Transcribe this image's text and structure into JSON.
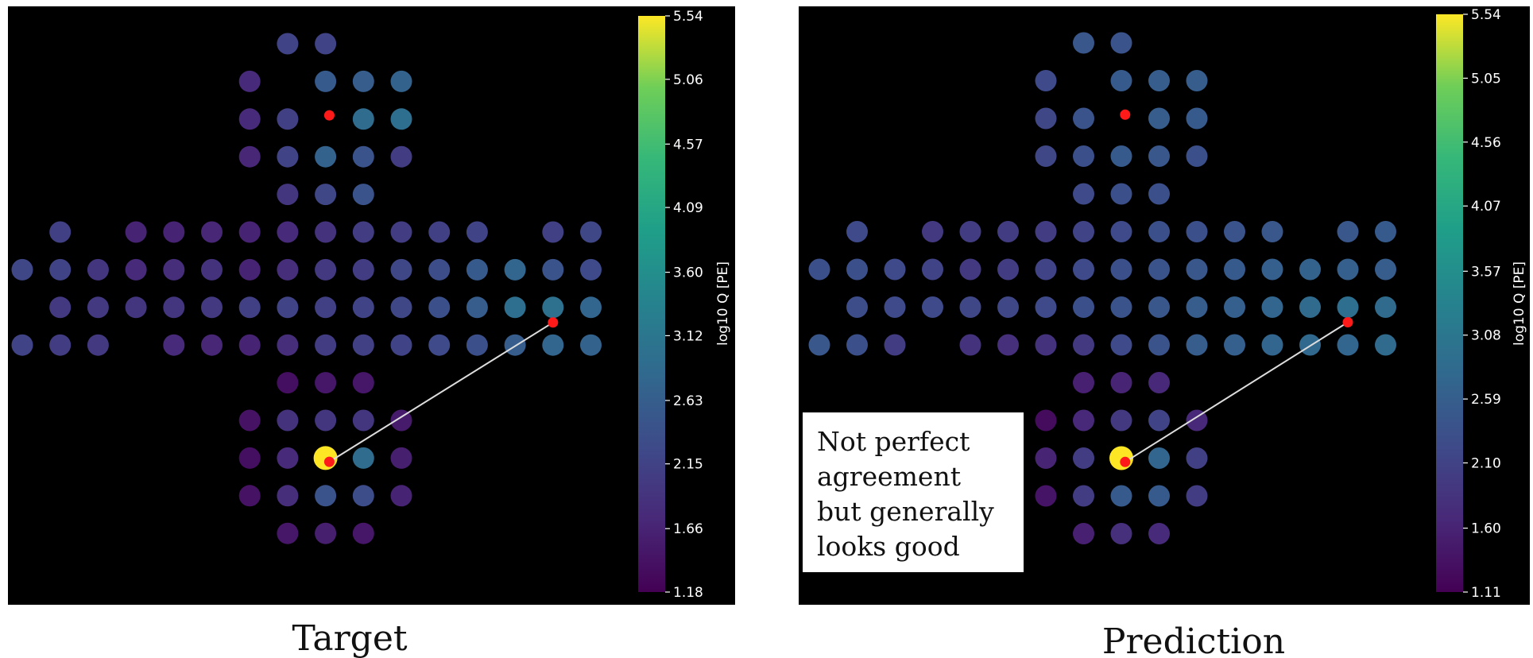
{
  "figure_caption": {
    "left": "Target",
    "right": "Prediction"
  },
  "chart_data": [
    {
      "type": "scatter",
      "title": "Target",
      "colorbar": {
        "label": "log10 Q [PE]",
        "min": 1.18,
        "max": 5.54,
        "ticks": [
          1.18,
          1.66,
          2.15,
          2.63,
          3.12,
          3.6,
          4.09,
          4.57,
          5.06,
          5.54
        ],
        "tick_labels": [
          "1.18",
          "1.66",
          "2.15",
          "2.63",
          "3.12",
          "3.60",
          "4.09",
          "4.57",
          "5.06",
          "5.54"
        ],
        "colormap": "viridis"
      },
      "background": "#000000",
      "grid": false,
      "points": [
        {
          "col": 7,
          "row": 0,
          "value": 2.05
        },
        {
          "col": 8,
          "row": 0,
          "value": 2.05
        },
        {
          "col": 6,
          "row": 1,
          "value": 1.7
        },
        {
          "col": 8,
          "row": 1,
          "value": 2.4
        },
        {
          "col": 9,
          "row": 1,
          "value": 2.45
        },
        {
          "col": 10,
          "row": 1,
          "value": 2.55
        },
        {
          "col": 6,
          "row": 2,
          "value": 1.7
        },
        {
          "col": 7,
          "row": 2,
          "value": 2.0
        },
        {
          "col": 9,
          "row": 2,
          "value": 2.7
        },
        {
          "col": 10,
          "row": 2,
          "value": 2.75
        },
        {
          "col": 6,
          "row": 3,
          "value": 1.65
        },
        {
          "col": 7,
          "row": 3,
          "value": 2.05
        },
        {
          "col": 8,
          "row": 3,
          "value": 2.55
        },
        {
          "col": 9,
          "row": 3,
          "value": 2.3
        },
        {
          "col": 10,
          "row": 3,
          "value": 1.95
        },
        {
          "col": 7,
          "row": 4,
          "value": 1.85
        },
        {
          "col": 8,
          "row": 4,
          "value": 2.1
        },
        {
          "col": 9,
          "row": 4,
          "value": 2.3
        },
        {
          "col": 1,
          "row": 5,
          "value": 2.0
        },
        {
          "col": 3,
          "row": 5,
          "value": 1.6
        },
        {
          "col": 4,
          "row": 5,
          "value": 1.6
        },
        {
          "col": 5,
          "row": 5,
          "value": 1.65
        },
        {
          "col": 6,
          "row": 5,
          "value": 1.6
        },
        {
          "col": 7,
          "row": 5,
          "value": 1.7
        },
        {
          "col": 8,
          "row": 5,
          "value": 1.8
        },
        {
          "col": 9,
          "row": 5,
          "value": 1.95
        },
        {
          "col": 10,
          "row": 5,
          "value": 1.95
        },
        {
          "col": 11,
          "row": 5,
          "value": 2.0
        },
        {
          "col": 12,
          "row": 5,
          "value": 2.05
        },
        {
          "col": 14,
          "row": 5,
          "value": 2.0
        },
        {
          "col": 15,
          "row": 5,
          "value": 2.1
        },
        {
          "col": 0,
          "row": 6,
          "value": 2.1
        },
        {
          "col": 1,
          "row": 6,
          "value": 2.05
        },
        {
          "col": 2,
          "row": 6,
          "value": 1.85
        },
        {
          "col": 3,
          "row": 6,
          "value": 1.7
        },
        {
          "col": 4,
          "row": 6,
          "value": 1.75
        },
        {
          "col": 5,
          "row": 6,
          "value": 1.8
        },
        {
          "col": 6,
          "row": 6,
          "value": 1.6
        },
        {
          "col": 7,
          "row": 6,
          "value": 1.75
        },
        {
          "col": 8,
          "row": 6,
          "value": 1.9
        },
        {
          "col": 9,
          "row": 6,
          "value": 1.95
        },
        {
          "col": 10,
          "row": 6,
          "value": 2.1
        },
        {
          "col": 11,
          "row": 6,
          "value": 2.2
        },
        {
          "col": 12,
          "row": 6,
          "value": 2.4
        },
        {
          "col": 13,
          "row": 6,
          "value": 2.6
        },
        {
          "col": 14,
          "row": 6,
          "value": 2.3
        },
        {
          "col": 15,
          "row": 6,
          "value": 2.15
        },
        {
          "col": 1,
          "row": 7,
          "value": 1.9
        },
        {
          "col": 2,
          "row": 7,
          "value": 1.9
        },
        {
          "col": 3,
          "row": 7,
          "value": 1.85
        },
        {
          "col": 4,
          "row": 7,
          "value": 1.85
        },
        {
          "col": 5,
          "row": 7,
          "value": 1.9
        },
        {
          "col": 6,
          "row": 7,
          "value": 2.0
        },
        {
          "col": 7,
          "row": 7,
          "value": 2.05
        },
        {
          "col": 8,
          "row": 7,
          "value": 2.0
        },
        {
          "col": 9,
          "row": 7,
          "value": 2.05
        },
        {
          "col": 10,
          "row": 7,
          "value": 2.1
        },
        {
          "col": 11,
          "row": 7,
          "value": 2.25
        },
        {
          "col": 12,
          "row": 7,
          "value": 2.45
        },
        {
          "col": 13,
          "row": 7,
          "value": 2.75
        },
        {
          "col": 14,
          "row": 7,
          "value": 2.8
        },
        {
          "col": 15,
          "row": 7,
          "value": 2.6
        },
        {
          "col": 0,
          "row": 8,
          "value": 2.05
        },
        {
          "col": 1,
          "row": 8,
          "value": 1.95
        },
        {
          "col": 2,
          "row": 8,
          "value": 1.9
        },
        {
          "col": 4,
          "row": 8,
          "value": 1.7
        },
        {
          "col": 5,
          "row": 8,
          "value": 1.65
        },
        {
          "col": 6,
          "row": 8,
          "value": 1.6
        },
        {
          "col": 7,
          "row": 8,
          "value": 1.75
        },
        {
          "col": 8,
          "row": 8,
          "value": 1.95
        },
        {
          "col": 9,
          "row": 8,
          "value": 2.0
        },
        {
          "col": 10,
          "row": 8,
          "value": 2.05
        },
        {
          "col": 11,
          "row": 8,
          "value": 2.15
        },
        {
          "col": 12,
          "row": 8,
          "value": 2.25
        },
        {
          "col": 13,
          "row": 8,
          "value": 2.45
        },
        {
          "col": 14,
          "row": 8,
          "value": 2.6
        },
        {
          "col": 15,
          "row": 8,
          "value": 2.55
        },
        {
          "col": 7,
          "row": 9,
          "value": 1.35
        },
        {
          "col": 8,
          "row": 9,
          "value": 1.45
        },
        {
          "col": 9,
          "row": 9,
          "value": 1.45
        },
        {
          "col": 6,
          "row": 10,
          "value": 1.4
        },
        {
          "col": 7,
          "row": 10,
          "value": 1.8
        },
        {
          "col": 8,
          "row": 10,
          "value": 1.85
        },
        {
          "col": 9,
          "row": 10,
          "value": 1.85
        },
        {
          "col": 10,
          "row": 10,
          "value": 1.5
        },
        {
          "col": 6,
          "row": 11,
          "value": 1.35
        },
        {
          "col": 7,
          "row": 11,
          "value": 1.7
        },
        {
          "col": 8,
          "row": 11,
          "value": 5.54
        },
        {
          "col": 9,
          "row": 11,
          "value": 2.7
        },
        {
          "col": 10,
          "row": 11,
          "value": 1.55
        },
        {
          "col": 6,
          "row": 12,
          "value": 1.4
        },
        {
          "col": 7,
          "row": 12,
          "value": 1.75
        },
        {
          "col": 8,
          "row": 12,
          "value": 2.3
        },
        {
          "col": 9,
          "row": 12,
          "value": 2.2
        },
        {
          "col": 10,
          "row": 12,
          "value": 1.6
        },
        {
          "col": 7,
          "row": 13,
          "value": 1.45
        },
        {
          "col": 8,
          "row": 13,
          "value": 1.55
        },
        {
          "col": 9,
          "row": 13,
          "value": 1.45
        }
      ],
      "markers": [
        {
          "col": 8.1,
          "row": 1.9
        },
        {
          "col": 8.1,
          "row": 11.1
        },
        {
          "col": 14.0,
          "row": 7.4
        }
      ],
      "track": {
        "from": {
          "col": 8.1,
          "row": 11.1
        },
        "to": {
          "col": 14.0,
          "row": 7.4
        }
      }
    },
    {
      "type": "scatter",
      "title": "Prediction",
      "annotation": [
        "Not perfect",
        "agreement",
        "but generally",
        "looks good"
      ],
      "colorbar": {
        "label": "log10 Q [PE]",
        "min": 1.11,
        "max": 5.54,
        "ticks": [
          1.11,
          1.6,
          2.1,
          2.59,
          3.08,
          3.57,
          4.07,
          4.56,
          5.05,
          5.54
        ],
        "tick_labels": [
          "1.11",
          "1.60",
          "2.10",
          "2.59",
          "3.08",
          "3.57",
          "4.07",
          "4.56",
          "5.05",
          "5.54"
        ],
        "colormap": "viridis"
      },
      "background": "#000000",
      "grid": false,
      "points": [
        {
          "col": 7,
          "row": 0,
          "value": 2.3
        },
        {
          "col": 8,
          "row": 0,
          "value": 2.25
        },
        {
          "col": 6,
          "row": 1,
          "value": 2.1
        },
        {
          "col": 8,
          "row": 1,
          "value": 2.35
        },
        {
          "col": 9,
          "row": 1,
          "value": 2.4
        },
        {
          "col": 10,
          "row": 1,
          "value": 2.4
        },
        {
          "col": 6,
          "row": 2,
          "value": 2.05
        },
        {
          "col": 7,
          "row": 2,
          "value": 2.25
        },
        {
          "col": 9,
          "row": 2,
          "value": 2.4
        },
        {
          "col": 10,
          "row": 2,
          "value": 2.35
        },
        {
          "col": 6,
          "row": 3,
          "value": 2.05
        },
        {
          "col": 7,
          "row": 3,
          "value": 2.2
        },
        {
          "col": 8,
          "row": 3,
          "value": 2.35
        },
        {
          "col": 9,
          "row": 3,
          "value": 2.3
        },
        {
          "col": 10,
          "row": 3,
          "value": 2.2
        },
        {
          "col": 7,
          "row": 4,
          "value": 2.1
        },
        {
          "col": 8,
          "row": 4,
          "value": 2.2
        },
        {
          "col": 9,
          "row": 4,
          "value": 2.2
        },
        {
          "col": 1,
          "row": 5,
          "value": 2.1
        },
        {
          "col": 3,
          "row": 5,
          "value": 1.85
        },
        {
          "col": 4,
          "row": 5,
          "value": 1.9
        },
        {
          "col": 5,
          "row": 5,
          "value": 1.9
        },
        {
          "col": 6,
          "row": 5,
          "value": 1.9
        },
        {
          "col": 7,
          "row": 5,
          "value": 2.0
        },
        {
          "col": 8,
          "row": 5,
          "value": 2.1
        },
        {
          "col": 9,
          "row": 5,
          "value": 2.2
        },
        {
          "col": 10,
          "row": 5,
          "value": 2.2
        },
        {
          "col": 11,
          "row": 5,
          "value": 2.25
        },
        {
          "col": 12,
          "row": 5,
          "value": 2.3
        },
        {
          "col": 14,
          "row": 5,
          "value": 2.3
        },
        {
          "col": 15,
          "row": 5,
          "value": 2.35
        },
        {
          "col": 0,
          "row": 6,
          "value": 2.2
        },
        {
          "col": 1,
          "row": 6,
          "value": 2.2
        },
        {
          "col": 2,
          "row": 6,
          "value": 2.1
        },
        {
          "col": 3,
          "row": 6,
          "value": 2.0
        },
        {
          "col": 4,
          "row": 6,
          "value": 1.85
        },
        {
          "col": 5,
          "row": 6,
          "value": 1.9
        },
        {
          "col": 6,
          "row": 6,
          "value": 2.0
        },
        {
          "col": 7,
          "row": 6,
          "value": 2.1
        },
        {
          "col": 8,
          "row": 6,
          "value": 2.2
        },
        {
          "col": 9,
          "row": 6,
          "value": 2.25
        },
        {
          "col": 10,
          "row": 6,
          "value": 2.3
        },
        {
          "col": 11,
          "row": 6,
          "value": 2.35
        },
        {
          "col": 12,
          "row": 6,
          "value": 2.45
        },
        {
          "col": 13,
          "row": 6,
          "value": 2.5
        },
        {
          "col": 14,
          "row": 6,
          "value": 2.45
        },
        {
          "col": 15,
          "row": 6,
          "value": 2.4
        },
        {
          "col": 1,
          "row": 7,
          "value": 2.15
        },
        {
          "col": 2,
          "row": 7,
          "value": 2.1
        },
        {
          "col": 3,
          "row": 7,
          "value": 2.1
        },
        {
          "col": 4,
          "row": 7,
          "value": 2.05
        },
        {
          "col": 5,
          "row": 7,
          "value": 2.05
        },
        {
          "col": 6,
          "row": 7,
          "value": 2.1
        },
        {
          "col": 7,
          "row": 7,
          "value": 2.2
        },
        {
          "col": 8,
          "row": 7,
          "value": 2.25
        },
        {
          "col": 9,
          "row": 7,
          "value": 2.3
        },
        {
          "col": 10,
          "row": 7,
          "value": 2.4
        },
        {
          "col": 11,
          "row": 7,
          "value": 2.45
        },
        {
          "col": 12,
          "row": 7,
          "value": 2.55
        },
        {
          "col": 13,
          "row": 7,
          "value": 2.65
        },
        {
          "col": 14,
          "row": 7,
          "value": 2.7
        },
        {
          "col": 15,
          "row": 7,
          "value": 2.65
        },
        {
          "col": 0,
          "row": 8,
          "value": 2.3
        },
        {
          "col": 1,
          "row": 8,
          "value": 2.2
        },
        {
          "col": 2,
          "row": 8,
          "value": 1.9
        },
        {
          "col": 4,
          "row": 8,
          "value": 1.75
        },
        {
          "col": 5,
          "row": 8,
          "value": 1.7
        },
        {
          "col": 6,
          "row": 8,
          "value": 1.75
        },
        {
          "col": 7,
          "row": 8,
          "value": 1.85
        },
        {
          "col": 8,
          "row": 8,
          "value": 2.1
        },
        {
          "col": 9,
          "row": 8,
          "value": 2.25
        },
        {
          "col": 10,
          "row": 8,
          "value": 2.4
        },
        {
          "col": 11,
          "row": 8,
          "value": 2.45
        },
        {
          "col": 12,
          "row": 8,
          "value": 2.55
        },
        {
          "col": 13,
          "row": 8,
          "value": 2.6
        },
        {
          "col": 14,
          "row": 8,
          "value": 2.55
        },
        {
          "col": 15,
          "row": 8,
          "value": 2.65
        },
        {
          "col": 7,
          "row": 9,
          "value": 1.5
        },
        {
          "col": 8,
          "row": 9,
          "value": 1.55
        },
        {
          "col": 9,
          "row": 9,
          "value": 1.6
        },
        {
          "col": 6,
          "row": 10,
          "value": 1.25
        },
        {
          "col": 7,
          "row": 10,
          "value": 1.6
        },
        {
          "col": 8,
          "row": 10,
          "value": 1.85
        },
        {
          "col": 9,
          "row": 10,
          "value": 2.0
        },
        {
          "col": 10,
          "row": 10,
          "value": 1.6
        },
        {
          "col": 6,
          "row": 11,
          "value": 1.55
        },
        {
          "col": 7,
          "row": 11,
          "value": 1.9
        },
        {
          "col": 8,
          "row": 11,
          "value": 5.54
        },
        {
          "col": 9,
          "row": 11,
          "value": 2.55
        },
        {
          "col": 10,
          "row": 11,
          "value": 1.95
        },
        {
          "col": 6,
          "row": 12,
          "value": 1.35
        },
        {
          "col": 7,
          "row": 12,
          "value": 1.9
        },
        {
          "col": 8,
          "row": 12,
          "value": 2.35
        },
        {
          "col": 9,
          "row": 12,
          "value": 2.35
        },
        {
          "col": 10,
          "row": 12,
          "value": 1.9
        },
        {
          "col": 7,
          "row": 13,
          "value": 1.5
        },
        {
          "col": 8,
          "row": 13,
          "value": 1.7
        },
        {
          "col": 9,
          "row": 13,
          "value": 1.65
        }
      ],
      "markers": [
        {
          "col": 8.1,
          "row": 1.9
        },
        {
          "col": 8.1,
          "row": 11.1
        },
        {
          "col": 14.0,
          "row": 7.4
        }
      ],
      "track": {
        "from": {
          "col": 8.1,
          "row": 11.1
        },
        "to": {
          "col": 14.0,
          "row": 7.4
        }
      }
    }
  ]
}
